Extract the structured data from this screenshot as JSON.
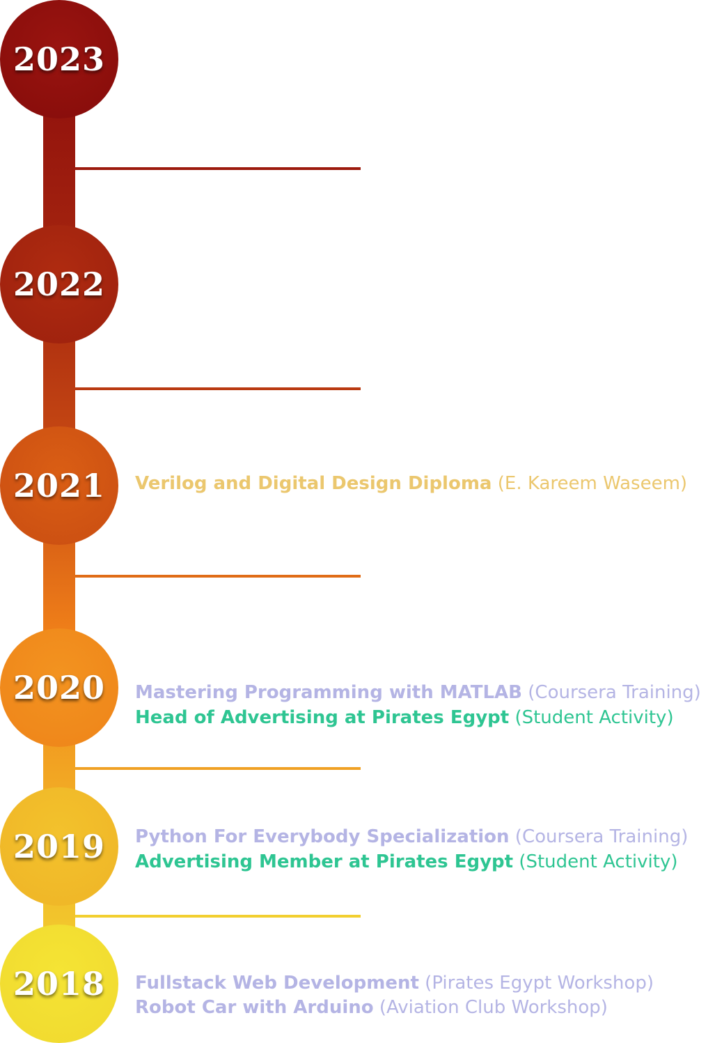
{
  "colors": {
    "year_2023": "#8e0e0c",
    "year_2022": "#a6240f",
    "year_2021": "#d15613",
    "year_2020": "#f08a1b",
    "year_2019": "#f1bc2a",
    "year_2018": "#f2e032",
    "course": "#b4b4e4",
    "activity": "#2ec592",
    "diploma": "#ebc76e"
  },
  "years": [
    {
      "label": "2023"
    },
    {
      "label": "2022"
    },
    {
      "label": "2021"
    },
    {
      "label": "2020"
    },
    {
      "label": "2019"
    },
    {
      "label": "2018"
    }
  ],
  "entries": {
    "y2021": [
      {
        "title": "Verilog and Digital Design Diploma",
        "source": " (E. Kareem Waseem)"
      }
    ],
    "y2020": [
      {
        "title": "Mastering Programming with MATLAB",
        "source": " (Coursera Training)"
      },
      {
        "title": "Head of Advertising at Pirates Egypt",
        "source": " (Student Activity)"
      }
    ],
    "y2019": [
      {
        "title": "Python For Everybody Specialization",
        "source": " (Coursera Training)"
      },
      {
        "title": "Advertising Member at Pirates Egypt",
        "source": " (Student Activity)"
      }
    ],
    "y2018": [
      {
        "title": "Fullstack Web Development",
        "source": " (Pirates Egypt Workshop)"
      },
      {
        "title": "Robot Car with Arduino",
        "source": " (Aviation Club Workshop)"
      }
    ]
  }
}
